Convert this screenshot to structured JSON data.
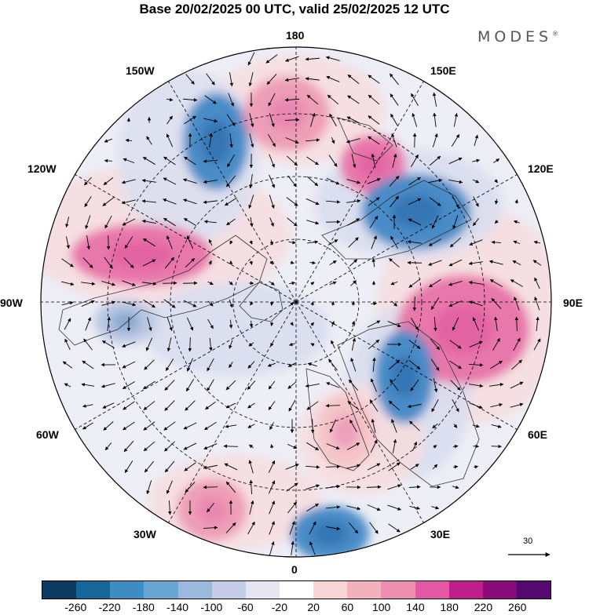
{
  "title": "Base 20/02/2025 00 UTC, valid 25/02/2025 12 UTC",
  "brand": {
    "text": "MODES",
    "mark": "®"
  },
  "longitude_labels": {
    "n180": "180",
    "e150": "150E",
    "e120": "120E",
    "e90": "90E",
    "e60": "60E",
    "e30": "30E",
    "s0": "0",
    "w30": "30W",
    "w60": "60W",
    "w90": "90W",
    "w120": "120W",
    "w150": "150W"
  },
  "vector_reference": {
    "value": "30"
  },
  "colorbar": {
    "tick_labels": [
      "-260",
      "-220",
      "-180",
      "-140",
      "-100",
      "-60",
      "-20",
      "20",
      "60",
      "100",
      "140",
      "180",
      "220",
      "260"
    ],
    "colors": [
      "#0b3b5e",
      "#15679a",
      "#3d8cc3",
      "#6aa6d3",
      "#9ab9dc",
      "#c5cce6",
      "#e6e6f2",
      "#ffffff",
      "#f8d5d5",
      "#f2b2bd",
      "#ef8fb0",
      "#e657a6",
      "#c01e8b",
      "#8b0a7a",
      "#55086e"
    ]
  },
  "map": {
    "type": "polar stereographic, North Pole centered",
    "anomalies": [
      {
        "sign": "negative",
        "level": "-140",
        "region": "near 160W"
      },
      {
        "sign": "positive",
        "level": "100",
        "region": "near 175E, high latitude Pacific"
      },
      {
        "sign": "positive",
        "level": "140",
        "region": "near 150E"
      },
      {
        "sign": "negative",
        "level": "-140",
        "region": "near 120E Siberia"
      },
      {
        "sign": "positive",
        "level": "140",
        "region": "near 105W Canada"
      },
      {
        "sign": "positive",
        "level": "140",
        "region": "near 80E"
      },
      {
        "sign": "negative",
        "level": "-140",
        "region": "near 60E Urals"
      },
      {
        "sign": "positive",
        "level": "60",
        "region": "near 40E"
      },
      {
        "sign": "negative",
        "level": "-140",
        "region": "near 5E Atlantic"
      },
      {
        "sign": "positive",
        "level": "100",
        "region": "near 30W Atlantic"
      },
      {
        "sign": "negative",
        "level": "-60",
        "region": "near 85W"
      }
    ]
  }
}
